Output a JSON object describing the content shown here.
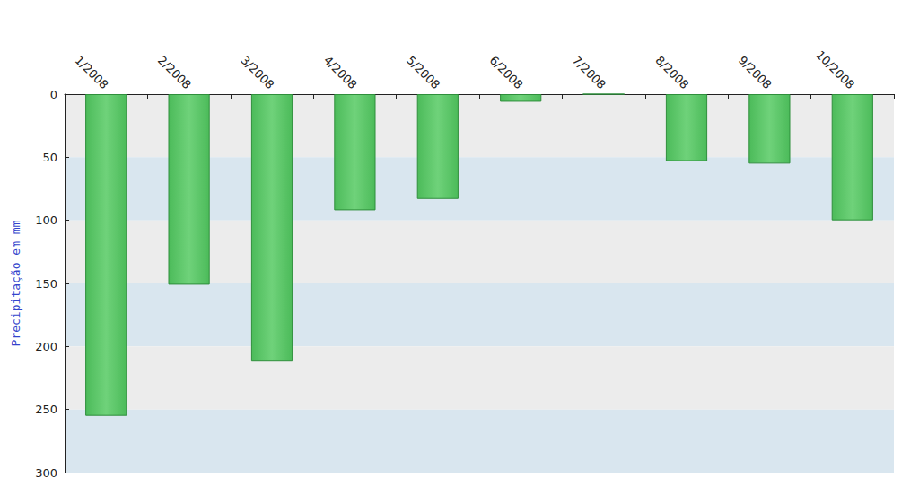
{
  "chart_data": {
    "type": "bar",
    "y_label": "Precipitação em mm",
    "categories": [
      "1/2008",
      "2/2008",
      "3/2008",
      "4/2008",
      "5/2008",
      "6/2008",
      "7/2008",
      "8/2008",
      "9/2008",
      "10/2008"
    ],
    "values": [
      255,
      151,
      212,
      92,
      83,
      6,
      0,
      53,
      55,
      100
    ],
    "color": "#4cbb5a",
    "ylim": [
      0,
      300
    ],
    "yticks": [
      0,
      50,
      100,
      150,
      200,
      250,
      300
    ],
    "grid": true
  }
}
